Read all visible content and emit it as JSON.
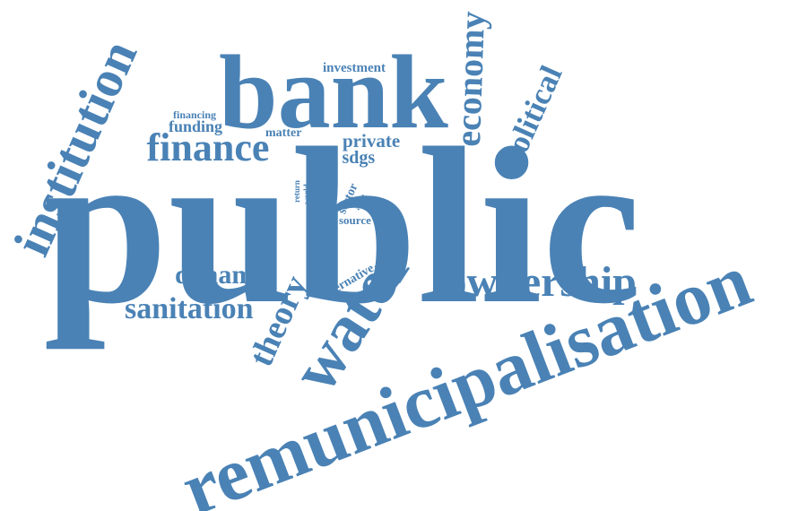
{
  "color": "#4a82b5",
  "words": {
    "public": "public",
    "bank": "bank",
    "remunicipalisation": "remunicipalisation",
    "institution": "institution",
    "water": "water",
    "ownership": "ownership",
    "finance": "finance",
    "economy": "economy",
    "political": "political",
    "sanitation": "sanitation",
    "dynamic": "dynamic",
    "theory": "theory",
    "investment": "investment",
    "private": "private",
    "sdgs": "sdgs",
    "funding": "funding",
    "financing": "financing",
    "matter": "matter",
    "alternative": "alternative",
    "source": "source",
    "sector": "sector",
    "asset": "asset",
    "return": "return",
    "world": "world"
  }
}
